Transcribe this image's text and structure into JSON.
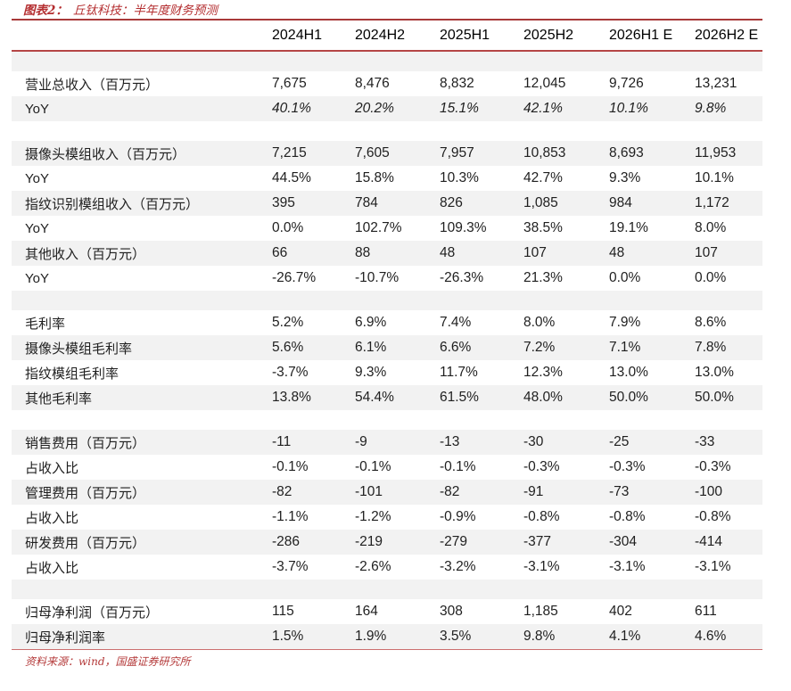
{
  "title": {
    "prefix": "图表2：",
    "rest": "丘钛科技：半年度财务预测"
  },
  "source": {
    "label": "资料来源：",
    "text": "wind，国盛证券研究所"
  },
  "colors": {
    "title_red": "#b42e30",
    "source_red": "#b43a3a",
    "rule_top": "#a83a3a",
    "rule_header": "#b54646",
    "rule_bottom": "#cc6f6f",
    "stripe_gray": "#f2f2f2",
    "text_dark": "#1f1f1f"
  },
  "table": {
    "columns": [
      "2024H1",
      "2024H2",
      "2025H1",
      "2025H2",
      "2026H1 E",
      "2026H2 E"
    ],
    "rows": [
      {
        "type": "spacer"
      },
      {
        "label": "营业总收入（百万元）",
        "values": [
          "7,675",
          "8,476",
          "8,832",
          "12,045",
          "9,726",
          "13,231"
        ]
      },
      {
        "label": "YoY",
        "values": [
          "40.1%",
          "20.2%",
          "15.1%",
          "42.1%",
          "10.1%",
          "9.8%"
        ],
        "italic": true
      },
      {
        "type": "spacer"
      },
      {
        "label": "摄像头模组收入（百万元）",
        "values": [
          "7,215",
          "7,605",
          "7,957",
          "10,853",
          "8,693",
          "11,953"
        ]
      },
      {
        "label": "YoY",
        "values": [
          "44.5%",
          "15.8%",
          "10.3%",
          "42.7%",
          "9.3%",
          "10.1%"
        ]
      },
      {
        "label": "指纹识别模组收入（百万元）",
        "values": [
          "395",
          "784",
          "826",
          "1,085",
          "984",
          "1,172"
        ]
      },
      {
        "label": "YoY",
        "values": [
          "0.0%",
          "102.7%",
          "109.3%",
          "38.5%",
          "19.1%",
          "8.0%"
        ]
      },
      {
        "label": "其他收入（百万元）",
        "values": [
          "66",
          "88",
          "48",
          "107",
          "48",
          "107"
        ]
      },
      {
        "label": "YoY",
        "values": [
          "-26.7%",
          "-10.7%",
          "-26.3%",
          "21.3%",
          "0.0%",
          "0.0%"
        ]
      },
      {
        "type": "spacer"
      },
      {
        "label": "毛利率",
        "values": [
          "5.2%",
          "6.9%",
          "7.4%",
          "8.0%",
          "7.9%",
          "8.6%"
        ]
      },
      {
        "label": "摄像头模组毛利率",
        "values": [
          "5.6%",
          "6.1%",
          "6.6%",
          "7.2%",
          "7.1%",
          "7.8%"
        ]
      },
      {
        "label": "指纹模组毛利率",
        "values": [
          "-3.7%",
          "9.3%",
          "11.7%",
          "12.3%",
          "13.0%",
          "13.0%"
        ]
      },
      {
        "label": "其他毛利率",
        "values": [
          "13.8%",
          "54.4%",
          "61.5%",
          "48.0%",
          "50.0%",
          "50.0%"
        ]
      },
      {
        "type": "spacer"
      },
      {
        "label": "销售费用（百万元）",
        "values": [
          "-11",
          "-9",
          "-13",
          "-30",
          "-25",
          "-33"
        ]
      },
      {
        "label": "占收入比",
        "values": [
          "-0.1%",
          "-0.1%",
          "-0.1%",
          "-0.3%",
          "-0.3%",
          "-0.3%"
        ]
      },
      {
        "label": "管理费用（百万元）",
        "values": [
          "-82",
          "-101",
          "-82",
          "-91",
          "-73",
          "-100"
        ]
      },
      {
        "label": "占收入比",
        "values": [
          "-1.1%",
          "-1.2%",
          "-0.9%",
          "-0.8%",
          "-0.8%",
          "-0.8%"
        ]
      },
      {
        "label": "研发费用（百万元）",
        "values": [
          "-286",
          "-219",
          "-279",
          "-377",
          "-304",
          "-414"
        ]
      },
      {
        "label": "占收入比",
        "values": [
          "-3.7%",
          "-2.6%",
          "-3.2%",
          "-3.1%",
          "-3.1%",
          "-3.1%"
        ]
      },
      {
        "type": "spacer"
      },
      {
        "label": "归母净利润（百万元）",
        "values": [
          "115",
          "164",
          "308",
          "1,185",
          "402",
          "611"
        ]
      },
      {
        "label": "归母净利润率",
        "values": [
          "1.5%",
          "1.9%",
          "3.5%",
          "9.8%",
          "4.1%",
          "4.6%"
        ]
      }
    ]
  }
}
